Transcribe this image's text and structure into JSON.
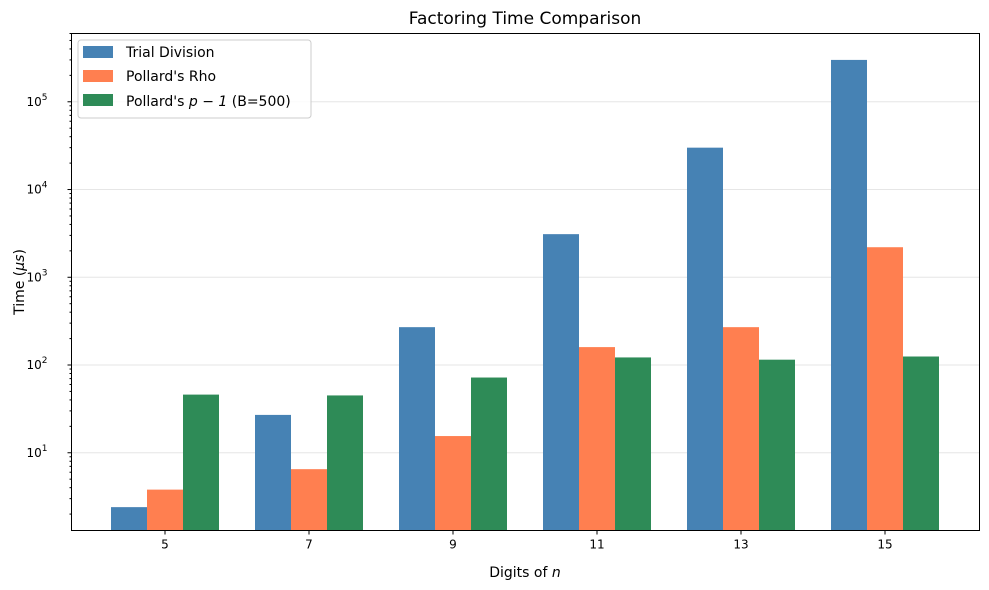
{
  "chart_data": {
    "type": "bar",
    "title": "Factoring Time Comparison",
    "xlabel": "Digits of",
    "xlabel_var": "n",
    "ylabel": "Time (",
    "ylabel_unit": "μs",
    "ylabel_close": ")",
    "yscale": "log",
    "ylim": [
      1.3,
      600000
    ],
    "categories": [
      "5",
      "7",
      "9",
      "11",
      "13",
      "15"
    ],
    "series": [
      {
        "name": "Trial Division",
        "color": "#4682b4",
        "values": [
          2.4,
          27,
          270,
          3100,
          30000,
          300000
        ]
      },
      {
        "name": "Pollard's Rho",
        "color": "#ff7f50",
        "values": [
          3.8,
          6.5,
          15.5,
          160,
          270,
          2200
        ]
      },
      {
        "name_prefix": "Pollard's ",
        "name_math": "p − 1",
        "name_suffix": " (B=500)",
        "color": "#2e8b57",
        "values": [
          46,
          45,
          72,
          122,
          115,
          125
        ]
      }
    ],
    "yticks": [
      {
        "base": "10",
        "exp": "1",
        "value": 10
      },
      {
        "base": "10",
        "exp": "2",
        "value": 100
      },
      {
        "base": "10",
        "exp": "3",
        "value": 1000
      },
      {
        "base": "10",
        "exp": "4",
        "value": 10000
      },
      {
        "base": "10",
        "exp": "5",
        "value": 100000
      }
    ],
    "grid": "y-major",
    "legend_position": "top-left"
  }
}
